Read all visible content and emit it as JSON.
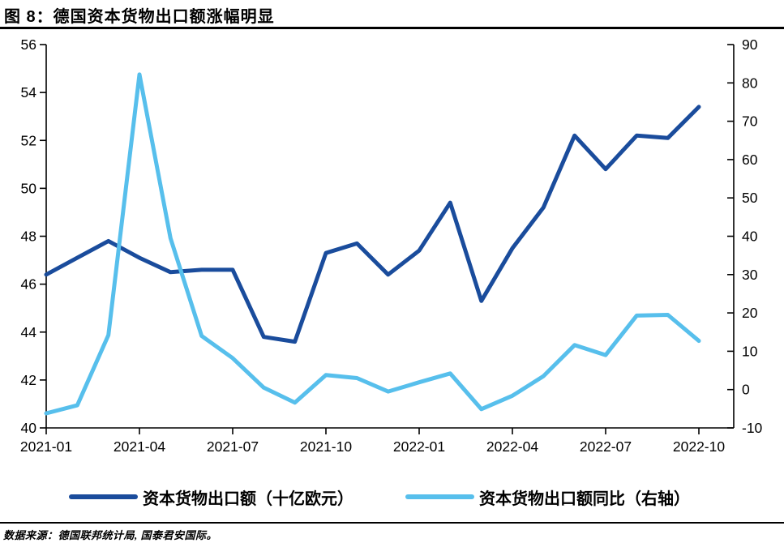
{
  "title": "图 8：德国资本货物出口额涨幅明显",
  "source": "数据来源：德国联邦统计局, 国泰君安国际。",
  "colors": {
    "exports_line": "#1A4C9C",
    "yoy_line": "#57BFEC",
    "axis": "#000000"
  },
  "legend": {
    "items": [
      {
        "label": "资本货物出口额（十亿欧元）",
        "color": "#1A4C9C"
      },
      {
        "label": "资本货物出口额同比（右轴）",
        "color": "#57BFEC"
      }
    ]
  },
  "chart_data": {
    "type": "line",
    "title": "图 8：德国资本货物出口额涨幅明显",
    "x": [
      "2021-01",
      "2021-02",
      "2021-03",
      "2021-04",
      "2021-05",
      "2021-06",
      "2021-07",
      "2021-08",
      "2021-09",
      "2021-10",
      "2021-11",
      "2021-12",
      "2022-01",
      "2022-02",
      "2022-03",
      "2022-04",
      "2022-05",
      "2022-06",
      "2022-07",
      "2022-08",
      "2022-09",
      "2022-10"
    ],
    "x_tick_labels": [
      "2021-01",
      "2021-04",
      "2021-07",
      "2021-10",
      "2022-01",
      "2022-04",
      "2022-07",
      "2022-10"
    ],
    "series": [
      {
        "name": "资本货物出口额（十亿欧元）",
        "axis": "left",
        "color": "#1A4C9C",
        "values": [
          46.4,
          47.1,
          47.8,
          47.1,
          46.5,
          46.6,
          46.6,
          43.8,
          43.6,
          47.3,
          47.7,
          46.4,
          47.4,
          49.4,
          45.3,
          47.5,
          49.2,
          52.2,
          50.8,
          52.2,
          52.1,
          53.4
        ]
      },
      {
        "name": "资本货物出口额同比（右轴）",
        "axis": "right",
        "color": "#57BFEC",
        "values": [
          -6.2,
          -4.1,
          14.2,
          82.2,
          39.5,
          14.0,
          8.2,
          0.5,
          -3.4,
          3.8,
          3.0,
          -0.5,
          1.9,
          4.2,
          -5.1,
          -1.6,
          3.5,
          11.6,
          9.0,
          19.3,
          19.5,
          12.7
        ]
      }
    ],
    "left_axis": {
      "min": 40,
      "max": 56,
      "step": 2,
      "ticks": [
        56,
        54,
        52,
        50,
        48,
        46,
        44,
        42,
        40
      ]
    },
    "right_axis": {
      "min": -10,
      "max": 90,
      "step": 10,
      "ticks": [
        90,
        80,
        70,
        60,
        50,
        40,
        30,
        20,
        10,
        0,
        -10
      ]
    },
    "grid": false,
    "legend_position": "bottom"
  }
}
